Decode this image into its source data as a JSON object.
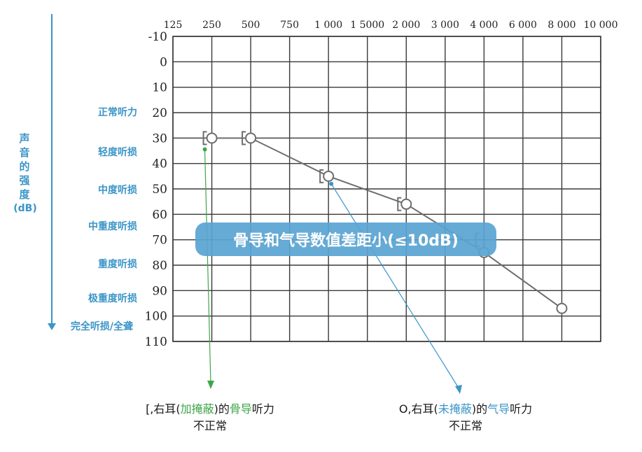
{
  "chart_data": {
    "type": "line",
    "title": "",
    "xlabel": "",
    "ylabel": "声音的强度(dB)",
    "x_ticks": [
      "125",
      "250",
      "500",
      "750",
      "1 000",
      "1 5000",
      "2 000",
      "3 000",
      "4 000",
      "6 000",
      "8 000",
      "10 000"
    ],
    "y_ticks": [
      -10,
      0,
      10,
      20,
      30,
      40,
      50,
      60,
      70,
      80,
      90,
      100,
      110
    ],
    "ylim": [
      -10,
      110
    ],
    "y_inverted": true,
    "grid": true,
    "series": [
      {
        "name": "",
        "marker": "circle",
        "x": [
          "250",
          "500",
          "1 000",
          "2 000",
          "4 000",
          "8 000"
        ],
        "values": [
          30,
          30,
          45,
          56,
          75,
          97
        ]
      },
      {
        "name": "",
        "marker": "[",
        "x": [
          "250",
          "500",
          "1 000",
          "2 000",
          "4 000"
        ],
        "values": [
          30,
          30,
          45,
          56,
          70
        ]
      }
    ],
    "categories_left": [
      {
        "label": "正常听力",
        "y": 20
      },
      {
        "label": "轻度听损",
        "y": 35
      },
      {
        "label": "中度听损",
        "y": 50
      },
      {
        "label": "中重度听损",
        "y": 64
      },
      {
        "label": "重度听损",
        "y": 79
      },
      {
        "label": "极重度听损",
        "y": 93
      },
      {
        "label": "完全听损/全聋",
        "y": 104
      }
    ],
    "annotation": "骨导和气导数值差距小(≤10dB)",
    "colors": {
      "grid": "#3a3a3a",
      "line": "#6e6e6e",
      "accent": "#3b95c8",
      "bone": "#3fa64a"
    }
  },
  "notes": {
    "left_line1_a": "[,右耳(",
    "left_line1_b": "加掩蔽",
    "left_line1_c": ")的",
    "left_line1_d": "骨导",
    "left_line1_e": "听力",
    "left_line2": "不正常",
    "right_line1_a": "O,右耳(",
    "right_line1_b": "未掩蔽",
    "right_line1_c": ")的",
    "right_line1_d": "气导",
    "right_line1_e": "听力",
    "right_line2": "不正常"
  },
  "axis_title_chars": [
    "声",
    "音",
    "的",
    "强",
    "度",
    "(dB)"
  ]
}
